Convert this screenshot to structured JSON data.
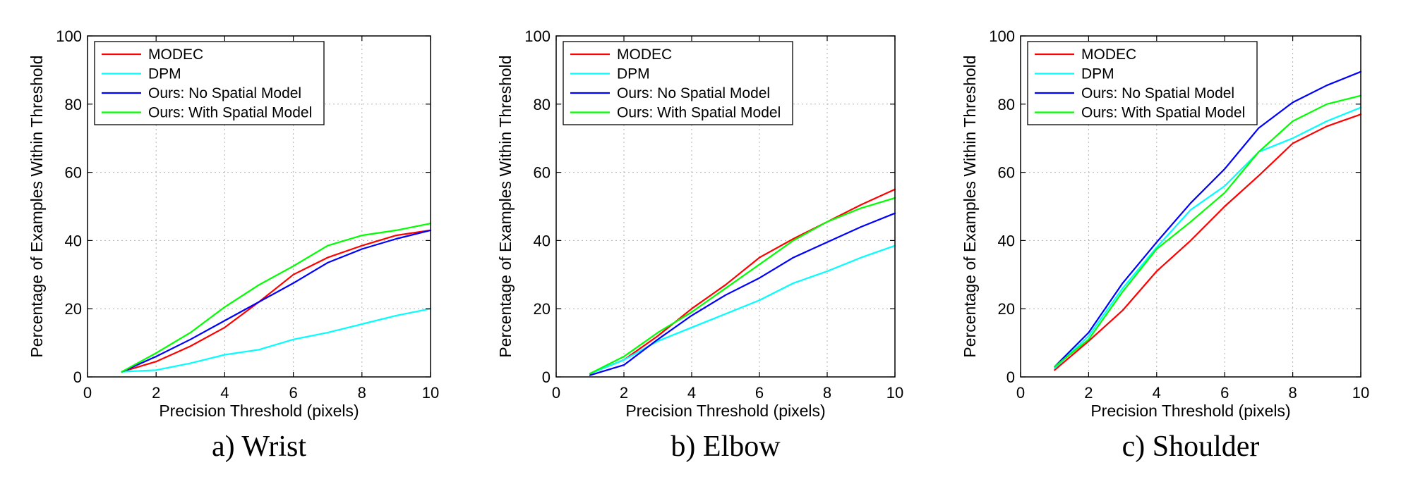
{
  "chart_data": [
    {
      "type": "line",
      "caption": "a) Wrist",
      "xlabel": "Precision Threshold (pixels)",
      "ylabel": "Percentage of Examples Within Threshold",
      "xlim": [
        0,
        10
      ],
      "ylim": [
        0,
        100
      ],
      "xticks": [
        0,
        2,
        4,
        6,
        8,
        10
      ],
      "yticks": [
        0,
        20,
        40,
        60,
        80,
        100
      ],
      "grid": true,
      "legend_position": "top-left",
      "x": [
        1,
        2,
        3,
        4,
        5,
        6,
        7,
        8,
        9,
        10
      ],
      "series": [
        {
          "name": "MODEC",
          "color": "#ff0000",
          "values": [
            1.5,
            4.5,
            9,
            14.5,
            22,
            30,
            35,
            38.5,
            41.5,
            43
          ]
        },
        {
          "name": "DPM",
          "color": "#00ffff",
          "values": [
            1.5,
            2,
            4,
            6.5,
            8,
            11,
            13,
            15.5,
            18,
            20
          ]
        },
        {
          "name": "Ours: No Spatial Model",
          "color": "#0000ff",
          "values": [
            1.5,
            6,
            11,
            16.5,
            22,
            27.5,
            33.5,
            37.5,
            40.5,
            43
          ]
        },
        {
          "name": "Ours: With Spatial Model",
          "color": "#00ff00",
          "values": [
            1.5,
            7,
            13,
            20.5,
            27,
            32.5,
            38.5,
            41.5,
            43,
            45
          ]
        }
      ]
    },
    {
      "type": "line",
      "caption": "b) Elbow",
      "xlabel": "Precision Threshold (pixels)",
      "ylabel": "Percentage of Examples Within Threshold",
      "xlim": [
        0,
        10
      ],
      "ylim": [
        0,
        100
      ],
      "xticks": [
        0,
        2,
        4,
        6,
        8,
        10
      ],
      "yticks": [
        0,
        20,
        40,
        60,
        80,
        100
      ],
      "grid": true,
      "legend_position": "top-left",
      "x": [
        1,
        2,
        3,
        4,
        5,
        6,
        7,
        8,
        9,
        10
      ],
      "series": [
        {
          "name": "MODEC",
          "color": "#ff0000",
          "values": [
            1,
            5,
            12,
            20,
            27,
            35,
            40.5,
            45.5,
            50.5,
            55
          ]
        },
        {
          "name": "DPM",
          "color": "#00ffff",
          "values": [
            1,
            5,
            10.5,
            14.5,
            18.5,
            22.5,
            27.5,
            31,
            35,
            38.5
          ]
        },
        {
          "name": "Ours: No Spatial Model",
          "color": "#0000ff",
          "values": [
            0.5,
            3.5,
            11,
            18,
            24,
            29,
            35,
            39.5,
            44,
            48
          ]
        },
        {
          "name": "Ours: With Spatial Model",
          "color": "#00ff00",
          "values": [
            1,
            6,
            13,
            19,
            26,
            33,
            40,
            45.5,
            49.5,
            52.5
          ]
        }
      ]
    },
    {
      "type": "line",
      "caption": "c) Shoulder",
      "xlabel": "Precision Threshold (pixels)",
      "ylabel": "Percentage of Examples Within Threshold",
      "xlim": [
        0,
        10
      ],
      "ylim": [
        0,
        100
      ],
      "xticks": [
        0,
        2,
        4,
        6,
        8,
        10
      ],
      "yticks": [
        0,
        20,
        40,
        60,
        80,
        100
      ],
      "grid": true,
      "legend_position": "top-left",
      "x": [
        1,
        2,
        3,
        4,
        5,
        6,
        7,
        8,
        9,
        10
      ],
      "series": [
        {
          "name": "MODEC",
          "color": "#ff0000",
          "values": [
            2,
            10.5,
            19.5,
            31,
            40,
            50,
            59,
            68.5,
            73.5,
            77
          ]
        },
        {
          "name": "DPM",
          "color": "#00ffff",
          "values": [
            2.5,
            12,
            26,
            38,
            49,
            56,
            66,
            70,
            75,
            79
          ]
        },
        {
          "name": "Ours: No Spatial Model",
          "color": "#0000ff",
          "values": [
            3,
            13,
            27.5,
            39.5,
            51,
            61,
            73,
            80.5,
            85.5,
            89.5
          ]
        },
        {
          "name": "Ours: With Spatial Model",
          "color": "#00ff00",
          "values": [
            3,
            11,
            25,
            37.5,
            45.5,
            54,
            66,
            75,
            80,
            82.5
          ]
        }
      ]
    }
  ]
}
